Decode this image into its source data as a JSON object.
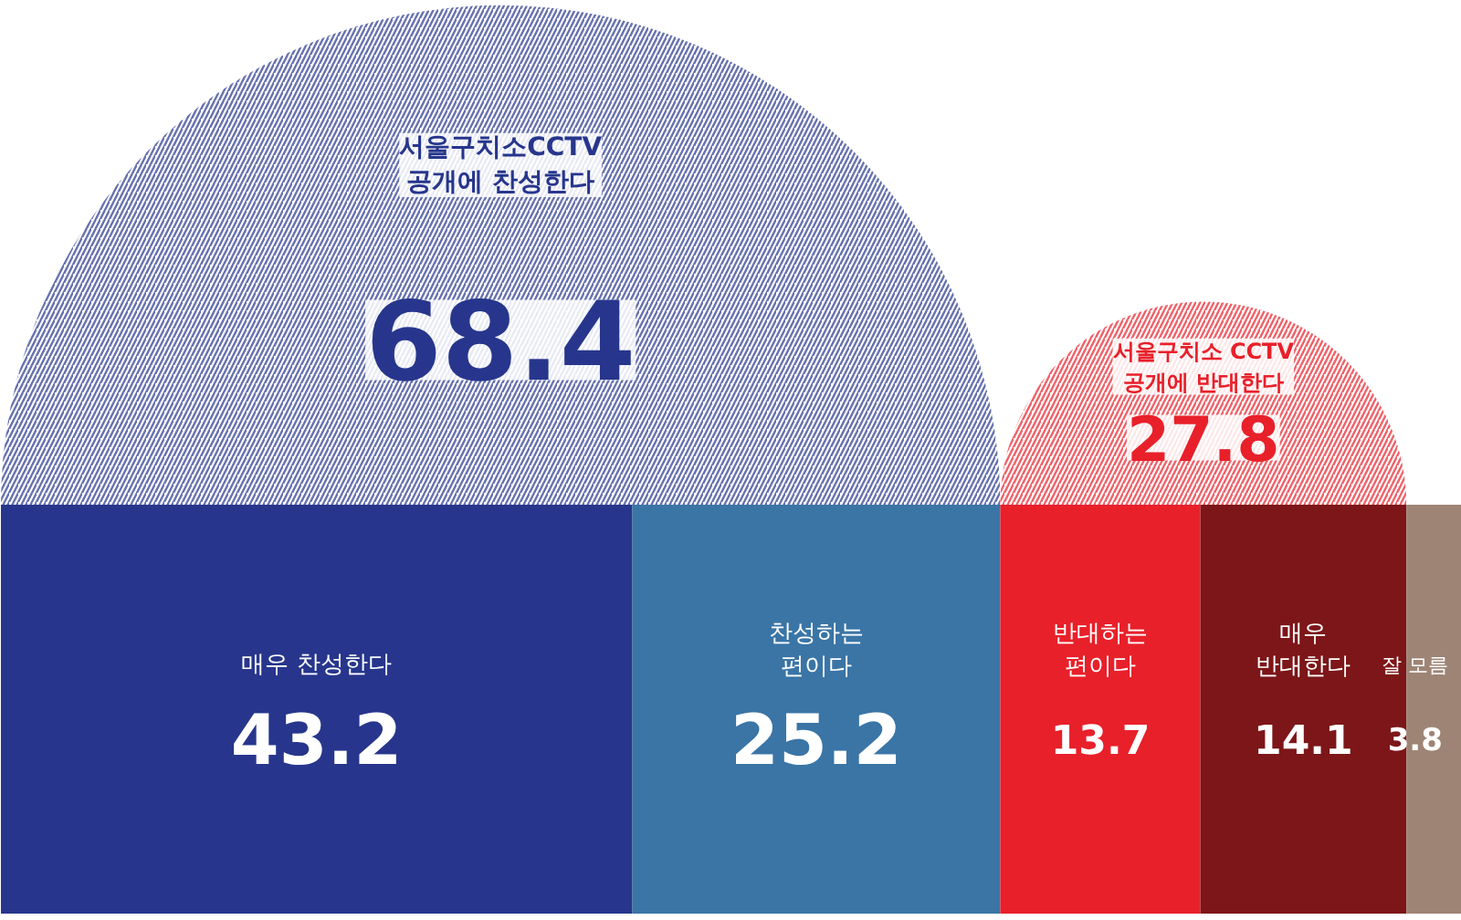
{
  "chart_data": {
    "type": "bar",
    "orientation": "horizontal",
    "stacked": true,
    "data_labels": true,
    "categories": [
      null
    ],
    "series": [
      {
        "name": "매우 찬성한다",
        "color": "#27368c",
        "values": [
          43.2
        ]
      },
      {
        "name": "찬성하는\n편이다",
        "color": "#3a75a6",
        "values": [
          25.2
        ]
      },
      {
        "name": "반대하는\n편이다",
        "color": "#e8202a",
        "values": [
          13.7
        ]
      },
      {
        "name": "매우\n반대한다",
        "color": "#7d1618",
        "values": [
          14.1
        ]
      },
      {
        "name": "잘 모름",
        "color": "#9e8474",
        "values": [
          3.8
        ]
      }
    ],
    "annotations": [
      "서울구치소CCTV\n공개에 찬성한다",
      "68.4",
      "서울구치소 CCTV\n공개에 반대한다",
      "27.8"
    ]
  }
}
